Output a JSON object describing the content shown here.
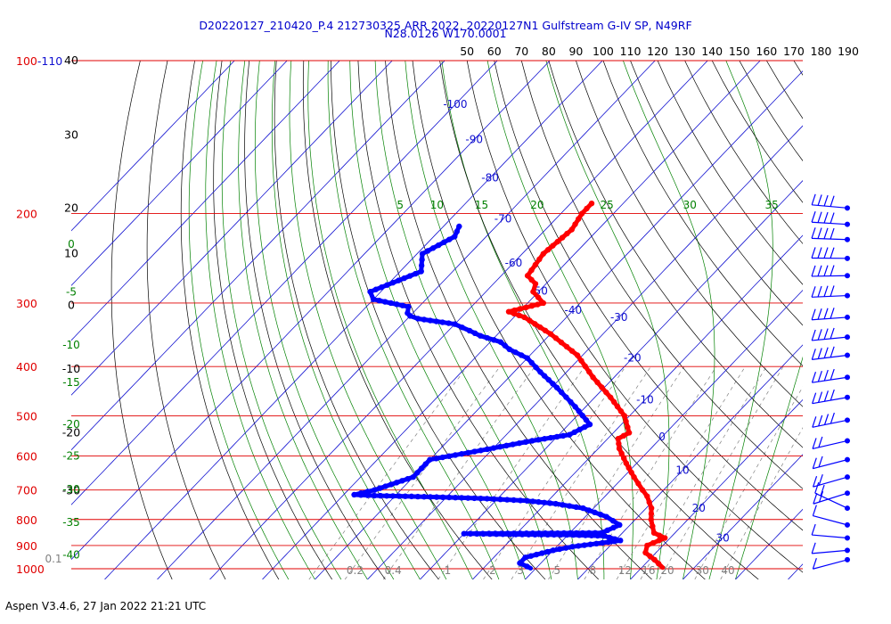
{
  "title_line1": "D20220127_210420_P.4 212730325 ARR 2022, 20220127N1 Gulfstream G-IV SP, N49RF",
  "title_line2": "N28.0126 W170.0001",
  "footer": "Aspen V3.4.6, 27 Jan 2022  21:21 UTC",
  "colors": {
    "isobar": "#e00000",
    "isobar_label": "#e00000",
    "isotherm": "#1010d0",
    "dry_adiabat": "#000000",
    "moist_adiabat": "#008000",
    "mixing_ratio": "#808080",
    "temperature": "#ff0000",
    "dewpoint": "#0000ff",
    "title": "#0000cc"
  },
  "chart_data": {
    "type": "skew-t",
    "y_axis": {
      "scale": "log",
      "range_hpa": [
        100,
        1000
      ],
      "pressure_labels": [
        "100-110",
        "200",
        "300",
        "400",
        "500",
        "600",
        "700",
        "800",
        "900",
        "1000"
      ],
      "pressures": [
        100,
        200,
        300,
        400,
        500,
        600,
        700,
        800,
        900,
        1000
      ]
    },
    "top_axis_labels": [
      "50",
      "60",
      "70",
      "80",
      "90",
      "100",
      "110",
      "120",
      "130",
      "140",
      "150",
      "160",
      "170",
      "180",
      "190"
    ],
    "left_dry_adiabat_labels": [
      {
        "text": "40",
        "p": 100
      },
      {
        "text": "30",
        "p": 140
      },
      {
        "text": "20",
        "p": 195
      },
      {
        "text": "10",
        "p": 240
      },
      {
        "text": "0",
        "p": 303
      },
      {
        "text": "-10",
        "p": 405
      },
      {
        "text": "-20",
        "p": 540
      },
      {
        "text": "-30",
        "p": 702
      }
    ],
    "isotherm_labels": [
      {
        "text": "-100",
        "p": 122
      },
      {
        "text": "-90",
        "p": 143
      },
      {
        "text": "-80",
        "p": 170
      },
      {
        "text": "-70",
        "p": 205
      },
      {
        "text": "-60",
        "p": 250
      },
      {
        "text": "-50",
        "p": 284
      },
      {
        "text": "-40",
        "p": 310
      },
      {
        "text": "-30",
        "p": 320
      },
      {
        "text": "-20",
        "p": 385
      },
      {
        "text": "-10",
        "p": 465
      },
      {
        "text": "0",
        "p": 550
      },
      {
        "text": "10",
        "p": 640
      },
      {
        "text": "20",
        "p": 760
      },
      {
        "text": "30",
        "p": 870
      }
    ],
    "moist_labels_top": [
      "5",
      "10",
      "15",
      "20",
      "25",
      "30",
      "35"
    ],
    "moist_labels_left": [
      {
        "text": "0",
        "p": 230
      },
      {
        "text": "-5",
        "p": 285
      },
      {
        "text": "-10",
        "p": 363
      },
      {
        "text": "-15",
        "p": 430
      },
      {
        "text": "-20",
        "p": 520
      },
      {
        "text": "-25",
        "p": 600
      },
      {
        "text": "-30",
        "p": 698
      },
      {
        "text": "-35",
        "p": 810
      },
      {
        "text": "-40",
        "p": 940
      }
    ],
    "mixing_ratio_labels": [
      "0.1",
      "0.2",
      "0.4",
      "1",
      "2",
      "3",
      "5",
      "8",
      "12",
      "16",
      "20",
      "30",
      "40"
    ],
    "temperature_profile": [
      {
        "p": 191,
        "t": -56
      },
      {
        "p": 200,
        "t": -56
      },
      {
        "p": 215,
        "t": -55
      },
      {
        "p": 240,
        "t": -56
      },
      {
        "p": 265,
        "t": -55
      },
      {
        "p": 275,
        "t": -52
      },
      {
        "p": 285,
        "t": -51
      },
      {
        "p": 300,
        "t": -47
      },
      {
        "p": 312,
        "t": -52
      },
      {
        "p": 320,
        "t": -48
      },
      {
        "p": 345,
        "t": -40
      },
      {
        "p": 380,
        "t": -31
      },
      {
        "p": 420,
        "t": -24
      },
      {
        "p": 460,
        "t": -17
      },
      {
        "p": 500,
        "t": -11
      },
      {
        "p": 540,
        "t": -7
      },
      {
        "p": 555,
        "t": -8
      },
      {
        "p": 580,
        "t": -6
      },
      {
        "p": 620,
        "t": -2
      },
      {
        "p": 660,
        "t": 2
      },
      {
        "p": 700,
        "t": 6
      },
      {
        "p": 720,
        "t": 8
      },
      {
        "p": 760,
        "t": 11
      },
      {
        "p": 800,
        "t": 13
      },
      {
        "p": 850,
        "t": 16
      },
      {
        "p": 870,
        "t": 19
      },
      {
        "p": 900,
        "t": 17
      },
      {
        "p": 930,
        "t": 18
      },
      {
        "p": 960,
        "t": 21
      },
      {
        "p": 995,
        "t": 24
      }
    ],
    "dewpoint_profile": [
      {
        "p": 212,
        "t": -77
      },
      {
        "p": 222,
        "t": -76
      },
      {
        "p": 240,
        "t": -79
      },
      {
        "p": 260,
        "t": -76
      },
      {
        "p": 285,
        "t": -82
      },
      {
        "p": 295,
        "t": -80
      },
      {
        "p": 300,
        "t": -76
      },
      {
        "p": 305,
        "t": -72
      },
      {
        "p": 314,
        "t": -71
      },
      {
        "p": 318,
        "t": -70
      },
      {
        "p": 322,
        "t": -68
      },
      {
        "p": 326,
        "t": -64
      },
      {
        "p": 330,
        "t": -60
      },
      {
        "p": 335,
        "t": -58
      },
      {
        "p": 340,
        "t": -56
      },
      {
        "p": 348,
        "t": -53
      },
      {
        "p": 358,
        "t": -48
      },
      {
        "p": 370,
        "t": -45
      },
      {
        "p": 385,
        "t": -40
      },
      {
        "p": 410,
        "t": -35
      },
      {
        "p": 440,
        "t": -29
      },
      {
        "p": 480,
        "t": -22
      },
      {
        "p": 520,
        "t": -16
      },
      {
        "p": 545,
        "t": -18
      },
      {
        "p": 560,
        "t": -24
      },
      {
        "p": 585,
        "t": -32
      },
      {
        "p": 610,
        "t": -40
      },
      {
        "p": 660,
        "t": -40
      },
      {
        "p": 700,
        "t": -45
      },
      {
        "p": 715,
        "t": -48
      },
      {
        "p": 718,
        "t": -44
      },
      {
        "p": 720,
        "t": -38
      },
      {
        "p": 725,
        "t": -27
      },
      {
        "p": 728,
        "t": -22
      },
      {
        "p": 735,
        "t": -14
      },
      {
        "p": 745,
        "t": -8
      },
      {
        "p": 760,
        "t": -2
      },
      {
        "p": 790,
        "t": 4
      },
      {
        "p": 820,
        "t": 8
      },
      {
        "p": 850,
        "t": 6
      },
      {
        "p": 853,
        "t": -20
      },
      {
        "p": 856,
        "t": -10
      },
      {
        "p": 858,
        "t": 1
      },
      {
        "p": 862,
        "t": 7
      },
      {
        "p": 880,
        "t": 11
      },
      {
        "p": 905,
        "t": 3
      },
      {
        "p": 920,
        "t": 0
      },
      {
        "p": 950,
        "t": -4
      },
      {
        "p": 975,
        "t": -4
      },
      {
        "p": 990,
        "t": -2
      },
      {
        "p": 998,
        "t": -1
      }
    ],
    "wind_barbs_pressure": [
      195,
      210,
      225,
      245,
      265,
      290,
      320,
      350,
      380,
      420,
      460,
      510,
      560,
      610,
      660,
      710,
      760,
      820,
      870,
      920,
      960
    ]
  }
}
